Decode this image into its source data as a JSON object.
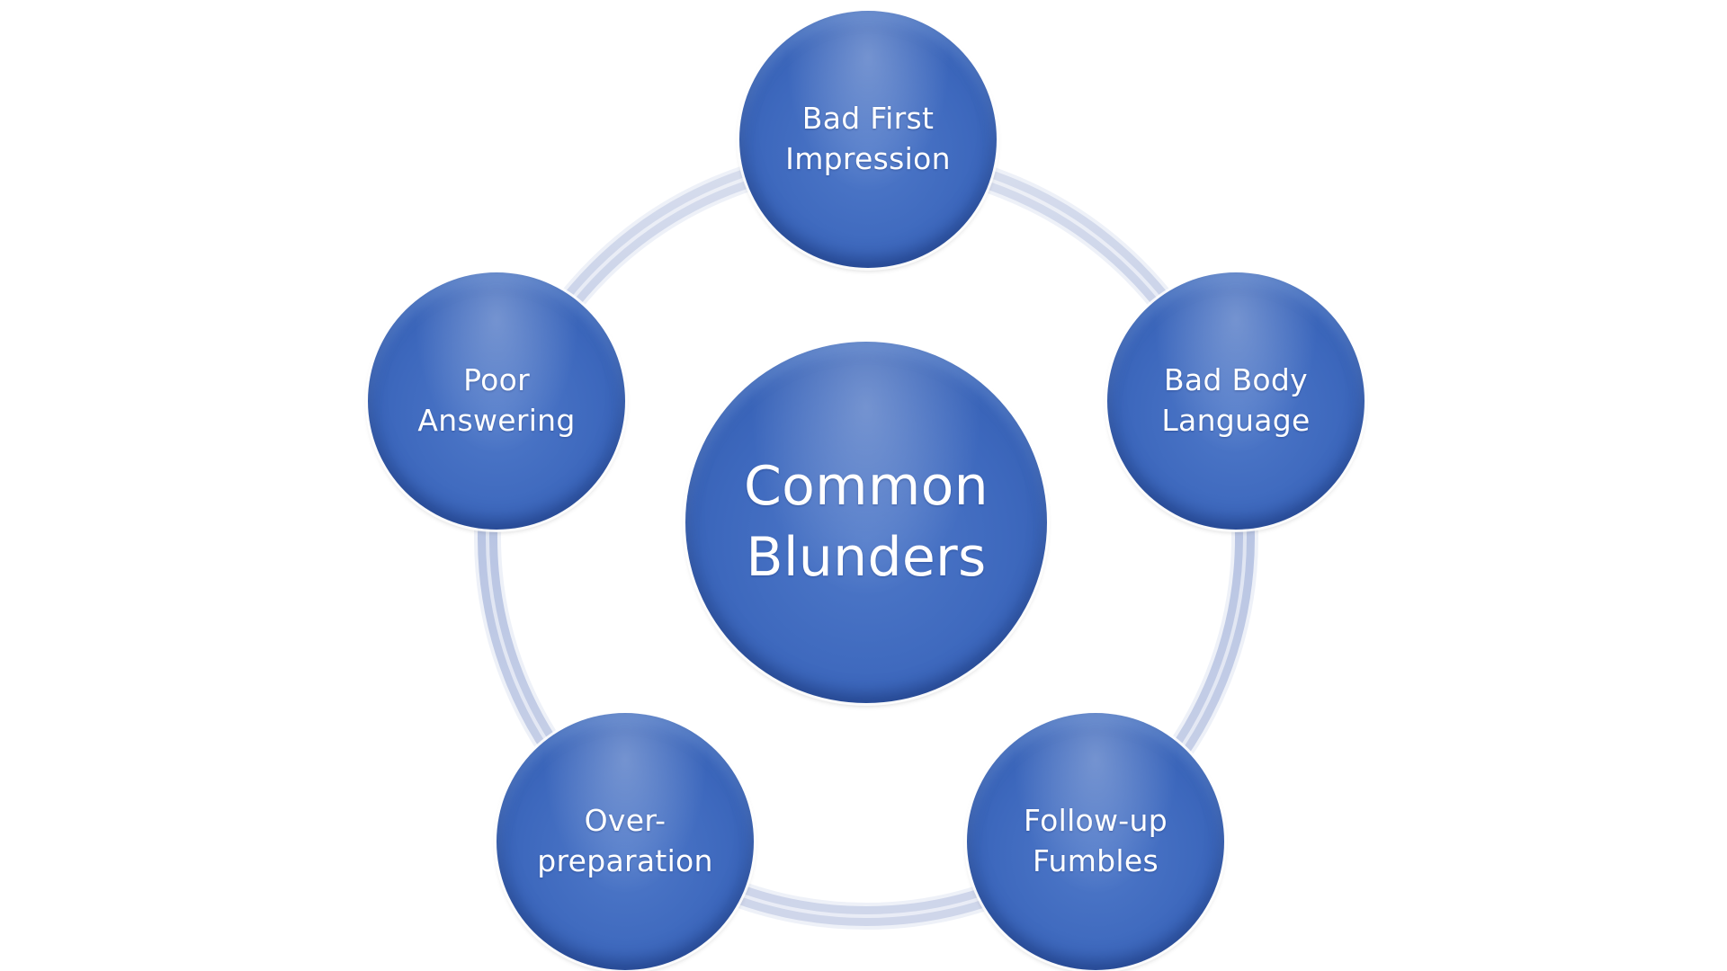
{
  "diagram": {
    "center": {
      "label": "Common\nBlunders"
    },
    "nodes": [
      {
        "id": "top",
        "label": "Bad First\nImpression"
      },
      {
        "id": "right",
        "label": "Bad Body\nLanguage"
      },
      {
        "id": "bright",
        "label": "Follow-up\nFumbles"
      },
      {
        "id": "bleft",
        "label": "Over-\npreparation"
      },
      {
        "id": "left",
        "label": "Poor\nAnswering"
      }
    ],
    "colors": {
      "node_fill": "#3d68bd",
      "ring": "#c3cde6",
      "text": "#ffffff"
    }
  }
}
